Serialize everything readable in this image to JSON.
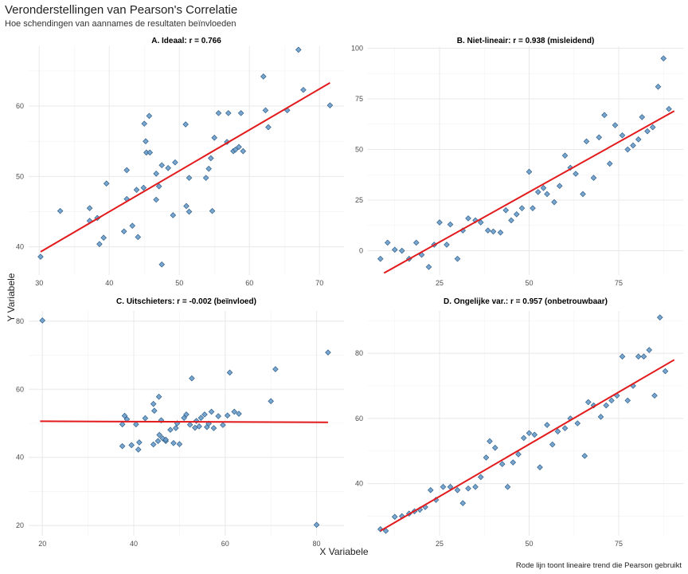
{
  "figure": {
    "title": "Veronderstellingen van Pearson's Correlatie",
    "subtitle": "Hoe schendingen van aannames de resultaten beïnvloeden",
    "xlabel": "X Variabele",
    "ylabel": "Y Variabele",
    "caption": "Rode lijn toont lineaire trend die Pearson gebruikt"
  },
  "colors": {
    "point_fill": "#6a9cc9",
    "point_stroke": "#2f5f8a",
    "trend": "#e31a1c",
    "grid": "#e8e8e8"
  },
  "chart_data": [
    {
      "type": "scatter",
      "title": "A. Ideaal: r = 0.766",
      "xlim": [
        28.5,
        73.5
      ],
      "ylim": [
        36,
        68.5
      ],
      "xticks": [
        30,
        40,
        50,
        60,
        70
      ],
      "yticks": [
        40,
        50,
        60
      ],
      "trend": [
        [
          30.2,
          39.3
        ],
        [
          71.5,
          63.3
        ]
      ],
      "points": [
        [
          30.2,
          38.6
        ],
        [
          33,
          45.1
        ],
        [
          37.2,
          45.5
        ],
        [
          37.2,
          43.7
        ],
        [
          38.3,
          44.1
        ],
        [
          38.6,
          40.4
        ],
        [
          39.2,
          41.3
        ],
        [
          39.6,
          49
        ],
        [
          42.1,
          42.2
        ],
        [
          42.5,
          46.8
        ],
        [
          42.5,
          50.9
        ],
        [
          43.3,
          43
        ],
        [
          43.9,
          48.1
        ],
        [
          44.1,
          41.4
        ],
        [
          44.9,
          48.4
        ],
        [
          45,
          57.5
        ],
        [
          45.2,
          55
        ],
        [
          45.3,
          53.4
        ],
        [
          45.7,
          58.6
        ],
        [
          45.8,
          53.4
        ],
        [
          46.7,
          46.7
        ],
        [
          46.7,
          50.4
        ],
        [
          47.1,
          48.6
        ],
        [
          47.5,
          37.5
        ],
        [
          47.5,
          51.6
        ],
        [
          48.4,
          51.2
        ],
        [
          49.1,
          44.5
        ],
        [
          49.4,
          52
        ],
        [
          50.9,
          57.4
        ],
        [
          51,
          45.8
        ],
        [
          51.4,
          45
        ],
        [
          51.4,
          49.8
        ],
        [
          53.8,
          49.8
        ],
        [
          54.2,
          51.1
        ],
        [
          54.5,
          52.6
        ],
        [
          54.7,
          45.1
        ],
        [
          55,
          55.5
        ],
        [
          55.6,
          59
        ],
        [
          56.8,
          54.9
        ],
        [
          57,
          59
        ],
        [
          57.7,
          53.6
        ],
        [
          58,
          53.8
        ],
        [
          58.5,
          54.2
        ],
        [
          58.8,
          59
        ],
        [
          59.1,
          53.6
        ],
        [
          62,
          64.2
        ],
        [
          62.3,
          59.4
        ],
        [
          62.7,
          57
        ],
        [
          65.4,
          59.4
        ],
        [
          67,
          68
        ],
        [
          67.7,
          62.3
        ],
        [
          71.5,
          60.1
        ]
      ]
    },
    {
      "type": "scatter",
      "title": "B. Niet-lineair: r = 0.938 (misleidend)",
      "xlim": [
        5,
        93
      ],
      "ylim": [
        -12,
        101
      ],
      "xticks": [
        25,
        50,
        75
      ],
      "yticks": [
        0,
        25,
        50,
        75,
        100
      ],
      "trend": [
        [
          9.5,
          -11
        ],
        [
          90.5,
          69
        ]
      ],
      "points": [
        [
          8.5,
          -4
        ],
        [
          10.5,
          4
        ],
        [
          12.5,
          0.5
        ],
        [
          14.5,
          0
        ],
        [
          16.5,
          -4
        ],
        [
          18.5,
          4
        ],
        [
          20,
          -2
        ],
        [
          22,
          -8
        ],
        [
          23.5,
          3
        ],
        [
          25,
          14
        ],
        [
          27,
          3
        ],
        [
          28,
          13
        ],
        [
          30,
          -4
        ],
        [
          31.5,
          10
        ],
        [
          33,
          16
        ],
        [
          35,
          15
        ],
        [
          36.5,
          14
        ],
        [
          38.5,
          10
        ],
        [
          40,
          9.5
        ],
        [
          42,
          9
        ],
        [
          43.5,
          20
        ],
        [
          45,
          15
        ],
        [
          46.5,
          18
        ],
        [
          48,
          21
        ],
        [
          50,
          39
        ],
        [
          51,
          21
        ],
        [
          52.5,
          29
        ],
        [
          54,
          31
        ],
        [
          55,
          28
        ],
        [
          57,
          24
        ],
        [
          58.5,
          32
        ],
        [
          60,
          47
        ],
        [
          61.5,
          41
        ],
        [
          63,
          38
        ],
        [
          65,
          28
        ],
        [
          66,
          54
        ],
        [
          68,
          36
        ],
        [
          69.5,
          56
        ],
        [
          71,
          67
        ],
        [
          72.5,
          43
        ],
        [
          74,
          62
        ],
        [
          76,
          57
        ],
        [
          77.5,
          50
        ],
        [
          79,
          52
        ],
        [
          80.5,
          55
        ],
        [
          81.5,
          66
        ],
        [
          83,
          59
        ],
        [
          84.5,
          61
        ],
        [
          86,
          81
        ],
        [
          87.5,
          95
        ],
        [
          89,
          70
        ]
      ]
    },
    {
      "type": "scatter",
      "title": "C. Uitschieters: r = -0.002 (beïnvloed)",
      "xlim": [
        17,
        86
      ],
      "ylim": [
        17,
        83
      ],
      "xticks": [
        20,
        40,
        60,
        80
      ],
      "yticks": [
        20,
        40,
        60,
        80
      ],
      "trend": [
        [
          19.5,
          50.6
        ],
        [
          82.5,
          50.3
        ]
      ],
      "points": [
        [
          20,
          80.2
        ],
        [
          37.5,
          43.3
        ],
        [
          37.5,
          49.7
        ],
        [
          38,
          52.2
        ],
        [
          38.5,
          51.2
        ],
        [
          39.5,
          43.6
        ],
        [
          40.5,
          49.7
        ],
        [
          41,
          42.3
        ],
        [
          41.2,
          44.4
        ],
        [
          42.5,
          51.5
        ],
        [
          44.3,
          43.8
        ],
        [
          44.3,
          55.7
        ],
        [
          44.5,
          53.7
        ],
        [
          45.3,
          44.8
        ],
        [
          45.5,
          57.8
        ],
        [
          45.6,
          46.6
        ],
        [
          46,
          50.9
        ],
        [
          46.3,
          45.6
        ],
        [
          47,
          44.8
        ],
        [
          47,
          45.2
        ],
        [
          48,
          48.1
        ],
        [
          48.7,
          44.2
        ],
        [
          49.2,
          48.6
        ],
        [
          49.5,
          50
        ],
        [
          50,
          43.9
        ],
        [
          51,
          51.6
        ],
        [
          51.5,
          52.6
        ],
        [
          52.3,
          49.6
        ],
        [
          52.7,
          63.2
        ],
        [
          53.4,
          48.7
        ],
        [
          53.7,
          50.7
        ],
        [
          54.3,
          49.1
        ],
        [
          54.7,
          51.6
        ],
        [
          55.5,
          52.6
        ],
        [
          56,
          48.9
        ],
        [
          56.4,
          49.9
        ],
        [
          57,
          53.4
        ],
        [
          57.5,
          48.6
        ],
        [
          58.5,
          52.1
        ],
        [
          59.5,
          49.5
        ],
        [
          60.5,
          52.3
        ],
        [
          61,
          64.9
        ],
        [
          62,
          53.4
        ],
        [
          63,
          52.8
        ],
        [
          70,
          56.5
        ],
        [
          71,
          65.9
        ],
        [
          80,
          20.2
        ],
        [
          82.5,
          70.8
        ]
      ]
    },
    {
      "type": "scatter",
      "title": "D. Ongelijke var.: r = 0.957 (onbetrouwbaar)",
      "xlim": [
        5,
        93
      ],
      "ylim": [
        24,
        93
      ],
      "xticks": [
        25,
        50,
        75
      ],
      "yticks": [
        40,
        60,
        80
      ],
      "trend": [
        [
          8.5,
          25.5
        ],
        [
          90.5,
          78
        ]
      ],
      "points": [
        [
          8.5,
          26
        ],
        [
          10,
          25.5
        ],
        [
          12.5,
          29.8
        ],
        [
          14.5,
          30
        ],
        [
          16.5,
          30.8
        ],
        [
          18,
          31.5
        ],
        [
          19.5,
          32
        ],
        [
          21,
          32.8
        ],
        [
          22.5,
          38
        ],
        [
          24,
          35
        ],
        [
          26,
          39
        ],
        [
          28,
          39
        ],
        [
          30,
          38
        ],
        [
          31.5,
          34
        ],
        [
          33,
          38.5
        ],
        [
          35,
          39
        ],
        [
          36.5,
          42
        ],
        [
          38,
          48
        ],
        [
          39,
          53
        ],
        [
          40.5,
          51
        ],
        [
          42.5,
          46
        ],
        [
          44,
          39
        ],
        [
          45.5,
          46.5
        ],
        [
          47,
          49
        ],
        [
          48.5,
          54
        ],
        [
          50,
          55.5
        ],
        [
          51.5,
          55
        ],
        [
          53,
          45
        ],
        [
          55,
          58
        ],
        [
          56.5,
          52
        ],
        [
          58,
          56
        ],
        [
          60,
          57
        ],
        [
          61.5,
          60
        ],
        [
          63.5,
          58.5
        ],
        [
          65.5,
          48.5
        ],
        [
          66.5,
          65
        ],
        [
          68,
          64
        ],
        [
          70,
          60.5
        ],
        [
          71.5,
          64
        ],
        [
          73,
          65.5
        ],
        [
          74.5,
          67
        ],
        [
          76,
          79
        ],
        [
          77.5,
          65.5
        ],
        [
          79,
          70
        ],
        [
          80.5,
          79
        ],
        [
          82,
          79
        ],
        [
          83.5,
          81
        ],
        [
          85,
          67
        ],
        [
          86.5,
          91
        ],
        [
          88,
          74.5
        ]
      ]
    }
  ]
}
